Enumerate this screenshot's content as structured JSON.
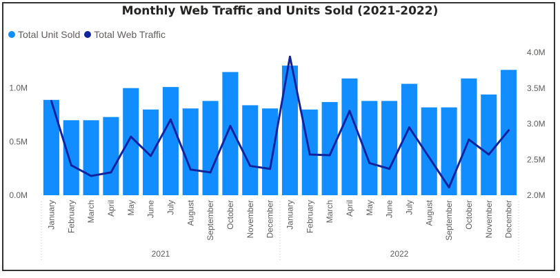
{
  "chart_data": {
    "type": "bar+line",
    "title": "Monthly Web Traffic and Units Sold (2021-2022)",
    "legend_position": "top-left",
    "categories": [
      "January",
      "February",
      "March",
      "April",
      "May",
      "June",
      "July",
      "August",
      "September",
      "October",
      "November",
      "December",
      "January",
      "February",
      "March",
      "April",
      "May",
      "June",
      "July",
      "August",
      "September",
      "October",
      "November",
      "December"
    ],
    "groups": [
      {
        "label": "2021",
        "start": 0,
        "end": 11
      },
      {
        "label": "2022",
        "start": 12,
        "end": 23
      }
    ],
    "series": [
      {
        "name": "Total Unit Sold",
        "type": "bar",
        "axis": "left",
        "color": "#118DFF",
        "values": [
          0.89,
          0.7,
          0.7,
          0.73,
          1.0,
          0.8,
          1.01,
          0.81,
          0.88,
          1.15,
          0.84,
          0.81,
          1.21,
          0.8,
          0.87,
          1.09,
          0.88,
          0.88,
          1.04,
          0.82,
          0.82,
          1.09,
          0.94,
          1.17
        ]
      },
      {
        "name": "Total Web Traffic",
        "type": "line",
        "axis": "right",
        "color": "#12239E",
        "values": [
          3.32,
          2.42,
          2.27,
          2.32,
          2.82,
          2.55,
          3.06,
          2.36,
          2.32,
          2.97,
          2.41,
          2.37,
          3.94,
          2.57,
          2.56,
          3.18,
          2.45,
          2.37,
          2.95,
          2.53,
          2.11,
          2.78,
          2.57,
          2.91
        ]
      }
    ],
    "left_axis": {
      "min": 0,
      "max": 1.333,
      "ticks": [
        0,
        0.5,
        1.0
      ],
      "tick_labels": [
        "0.0M",
        "0.5M",
        "1.0M"
      ]
    },
    "right_axis": {
      "min": 2.0,
      "max": 4.0,
      "ticks": [
        2.0,
        2.5,
        3.0,
        3.5,
        4.0
      ],
      "tick_labels": [
        "2.0M",
        "2.5M",
        "3.0M",
        "3.5M",
        "4.0M"
      ]
    },
    "grid": false
  }
}
